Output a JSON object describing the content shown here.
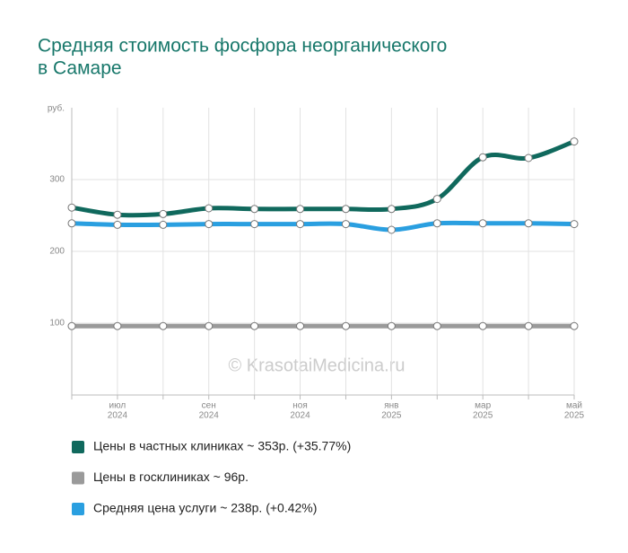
{
  "chart_data": {
    "type": "line",
    "title": [
      "Средняя стоимость фосфора неорганического",
      "в Самаре"
    ],
    "y_label": "руб.",
    "watermark": "© KrasotaiMedicina.ru",
    "categories": [
      null,
      [
        "июл",
        "2024"
      ],
      null,
      [
        "сен",
        "2024"
      ],
      null,
      [
        "ноя",
        "2024"
      ],
      null,
      [
        "янв",
        "2025"
      ],
      null,
      [
        "мар",
        "2025"
      ],
      null,
      [
        "май",
        "2025"
      ]
    ],
    "ylim": [
      0,
      400
    ],
    "yticks": [
      100,
      200,
      300
    ],
    "grid": true,
    "series": [
      {
        "name": "Цены в частных клиниках ~ 353р. (+35.77%)",
        "color": "#10695d",
        "values": [
          261,
          251,
          252,
          260,
          259,
          259,
          259,
          259,
          273,
          331,
          330,
          353
        ]
      },
      {
        "name": "Цены в госклиниках ~ 96р.",
        "color": "#9a9a9a",
        "values": [
          96,
          96,
          96,
          96,
          96,
          96,
          96,
          96,
          96,
          96,
          96,
          96
        ]
      },
      {
        "name": "Средняя цена услуги ~ 238р. (+0.42%)",
        "color": "#2a9fe0",
        "values": [
          239,
          237,
          237,
          238,
          238,
          238,
          238,
          230,
          239,
          239,
          239,
          238
        ]
      }
    ]
  }
}
